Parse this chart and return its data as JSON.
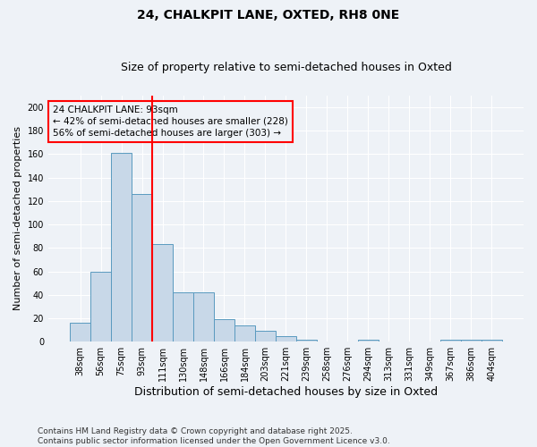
{
  "title": "24, CHALKPIT LANE, OXTED, RH8 0NE",
  "subtitle": "Size of property relative to semi-detached houses in Oxted",
  "xlabel": "Distribution of semi-detached houses by size in Oxted",
  "ylabel": "Number of semi-detached properties",
  "categories": [
    "38sqm",
    "56sqm",
    "75sqm",
    "93sqm",
    "111sqm",
    "130sqm",
    "148sqm",
    "166sqm",
    "184sqm",
    "203sqm",
    "221sqm",
    "239sqm",
    "258sqm",
    "276sqm",
    "294sqm",
    "313sqm",
    "331sqm",
    "349sqm",
    "367sqm",
    "386sqm",
    "404sqm"
  ],
  "values": [
    16,
    60,
    161,
    126,
    83,
    42,
    42,
    19,
    14,
    9,
    5,
    2,
    0,
    0,
    2,
    0,
    0,
    0,
    2,
    2,
    2
  ],
  "bar_color": "#c8d8e8",
  "bar_edge_color": "#5a9abf",
  "red_line_x": 3.5,
  "annotation_text": "24 CHALKPIT LANE: 93sqm\n← 42% of semi-detached houses are smaller (228)\n56% of semi-detached houses are larger (303) →",
  "ylim": [
    0,
    210
  ],
  "yticks": [
    0,
    20,
    40,
    60,
    80,
    100,
    120,
    140,
    160,
    180,
    200
  ],
  "footer_line1": "Contains HM Land Registry data © Crown copyright and database right 2025.",
  "footer_line2": "Contains public sector information licensed under the Open Government Licence v3.0.",
  "background_color": "#eef2f7",
  "grid_color": "#ffffff",
  "title_fontsize": 10,
  "subtitle_fontsize": 9,
  "tick_fontsize": 7,
  "ylabel_fontsize": 8,
  "xlabel_fontsize": 9,
  "annotation_fontsize": 7.5,
  "footer_fontsize": 6.5
}
